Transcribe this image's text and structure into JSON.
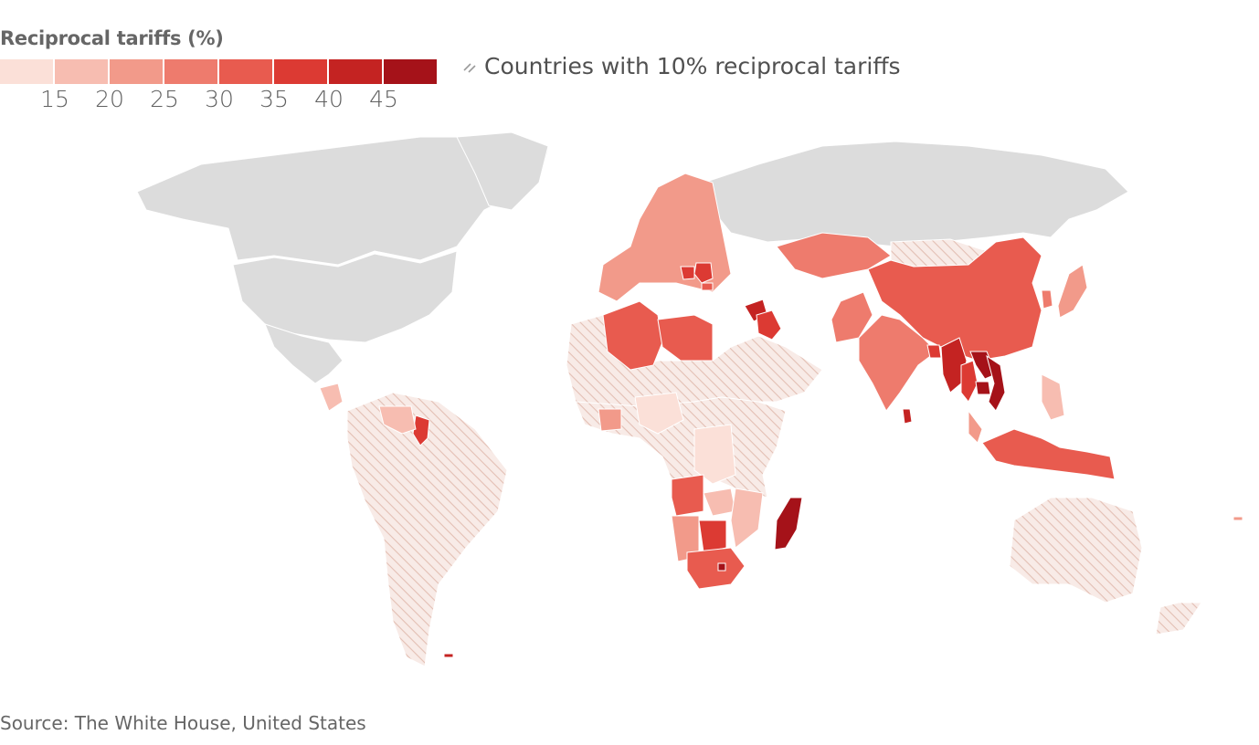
{
  "legend": {
    "title": "Reciprocal tariffs (%)",
    "color_scale": [
      "#fbe0d8",
      "#f7bdb1",
      "#f29a8a",
      "#ee7b6d",
      "#e85b4f",
      "#dc3a33",
      "#c42322",
      "#a51219"
    ],
    "ticks": [
      "15",
      "20",
      "25",
      "30",
      "35",
      "40",
      "45"
    ],
    "hatch_label": "Countries with 10% reciprocal tariffs",
    "hatch_icon": "diagonal-hatch-icon"
  },
  "map": {
    "base_color": "#dcdcdc",
    "hatch_color": "#e6c4ba",
    "hatch_bg": "#f8ebe7",
    "regions": [
      {
        "name": "Canada",
        "tariff": null
      },
      {
        "name": "United States",
        "tariff": null
      },
      {
        "name": "Mexico",
        "tariff": null
      },
      {
        "name": "Greenland",
        "tariff": null
      },
      {
        "name": "Russia",
        "tariff": null
      },
      {
        "name": "South America",
        "tariff": 10
      },
      {
        "name": "Guyana",
        "tariff": 38
      },
      {
        "name": "Venezuela",
        "tariff": 15
      },
      {
        "name": "Nicaragua",
        "tariff": 18
      },
      {
        "name": "Western Europe",
        "tariff": 20
      },
      {
        "name": "Serbia",
        "tariff": 37
      },
      {
        "name": "Bosnia and Herzegovina",
        "tariff": 35
      },
      {
        "name": "North Macedonia",
        "tariff": 33
      },
      {
        "name": "Algeria",
        "tariff": 30
      },
      {
        "name": "Libya",
        "tariff": 31
      },
      {
        "name": "Syria",
        "tariff": 41
      },
      {
        "name": "Iraq",
        "tariff": 39
      },
      {
        "name": "Middle East and North Africa",
        "tariff": 10
      },
      {
        "name": "Kazakhstan",
        "tariff": 27
      },
      {
        "name": "Mongolia",
        "tariff": 10
      },
      {
        "name": "China",
        "tariff": 34
      },
      {
        "name": "Japan",
        "tariff": 24
      },
      {
        "name": "South Korea",
        "tariff": 25
      },
      {
        "name": "Pakistan",
        "tariff": 29
      },
      {
        "name": "India",
        "tariff": 26
      },
      {
        "name": "Bangladesh",
        "tariff": 37
      },
      {
        "name": "Sri Lanka",
        "tariff": 44
      },
      {
        "name": "Myanmar",
        "tariff": 44
      },
      {
        "name": "Thailand",
        "tariff": 36
      },
      {
        "name": "Laos",
        "tariff": 48
      },
      {
        "name": "Vietnam",
        "tariff": 46
      },
      {
        "name": "Cambodia",
        "tariff": 49
      },
      {
        "name": "Malaysia",
        "tariff": 24
      },
      {
        "name": "Indonesia",
        "tariff": 32
      },
      {
        "name": "Philippines",
        "tariff": 17
      },
      {
        "name": "Nigeria",
        "tariff": 14
      },
      {
        "name": "Cote d'Ivoire",
        "tariff": 21
      },
      {
        "name": "DR Congo",
        "tariff": 11
      },
      {
        "name": "Angola",
        "tariff": 32
      },
      {
        "name": "Zambia",
        "tariff": 17
      },
      {
        "name": "Mozambique",
        "tariff": 16
      },
      {
        "name": "Namibia",
        "tariff": 21
      },
      {
        "name": "Botswana",
        "tariff": 37
      },
      {
        "name": "South Africa",
        "tariff": 30
      },
      {
        "name": "Lesotho",
        "tariff": 50
      },
      {
        "name": "Madagascar",
        "tariff": 47
      },
      {
        "name": "Sub-Saharan Africa",
        "tariff": 10
      },
      {
        "name": "Australia",
        "tariff": 10
      },
      {
        "name": "New Zealand",
        "tariff": 10
      },
      {
        "name": "Falkland Islands",
        "tariff": 41
      },
      {
        "name": "Vanuatu",
        "tariff": 22
      }
    ]
  },
  "source": "Source: The White House, United States"
}
